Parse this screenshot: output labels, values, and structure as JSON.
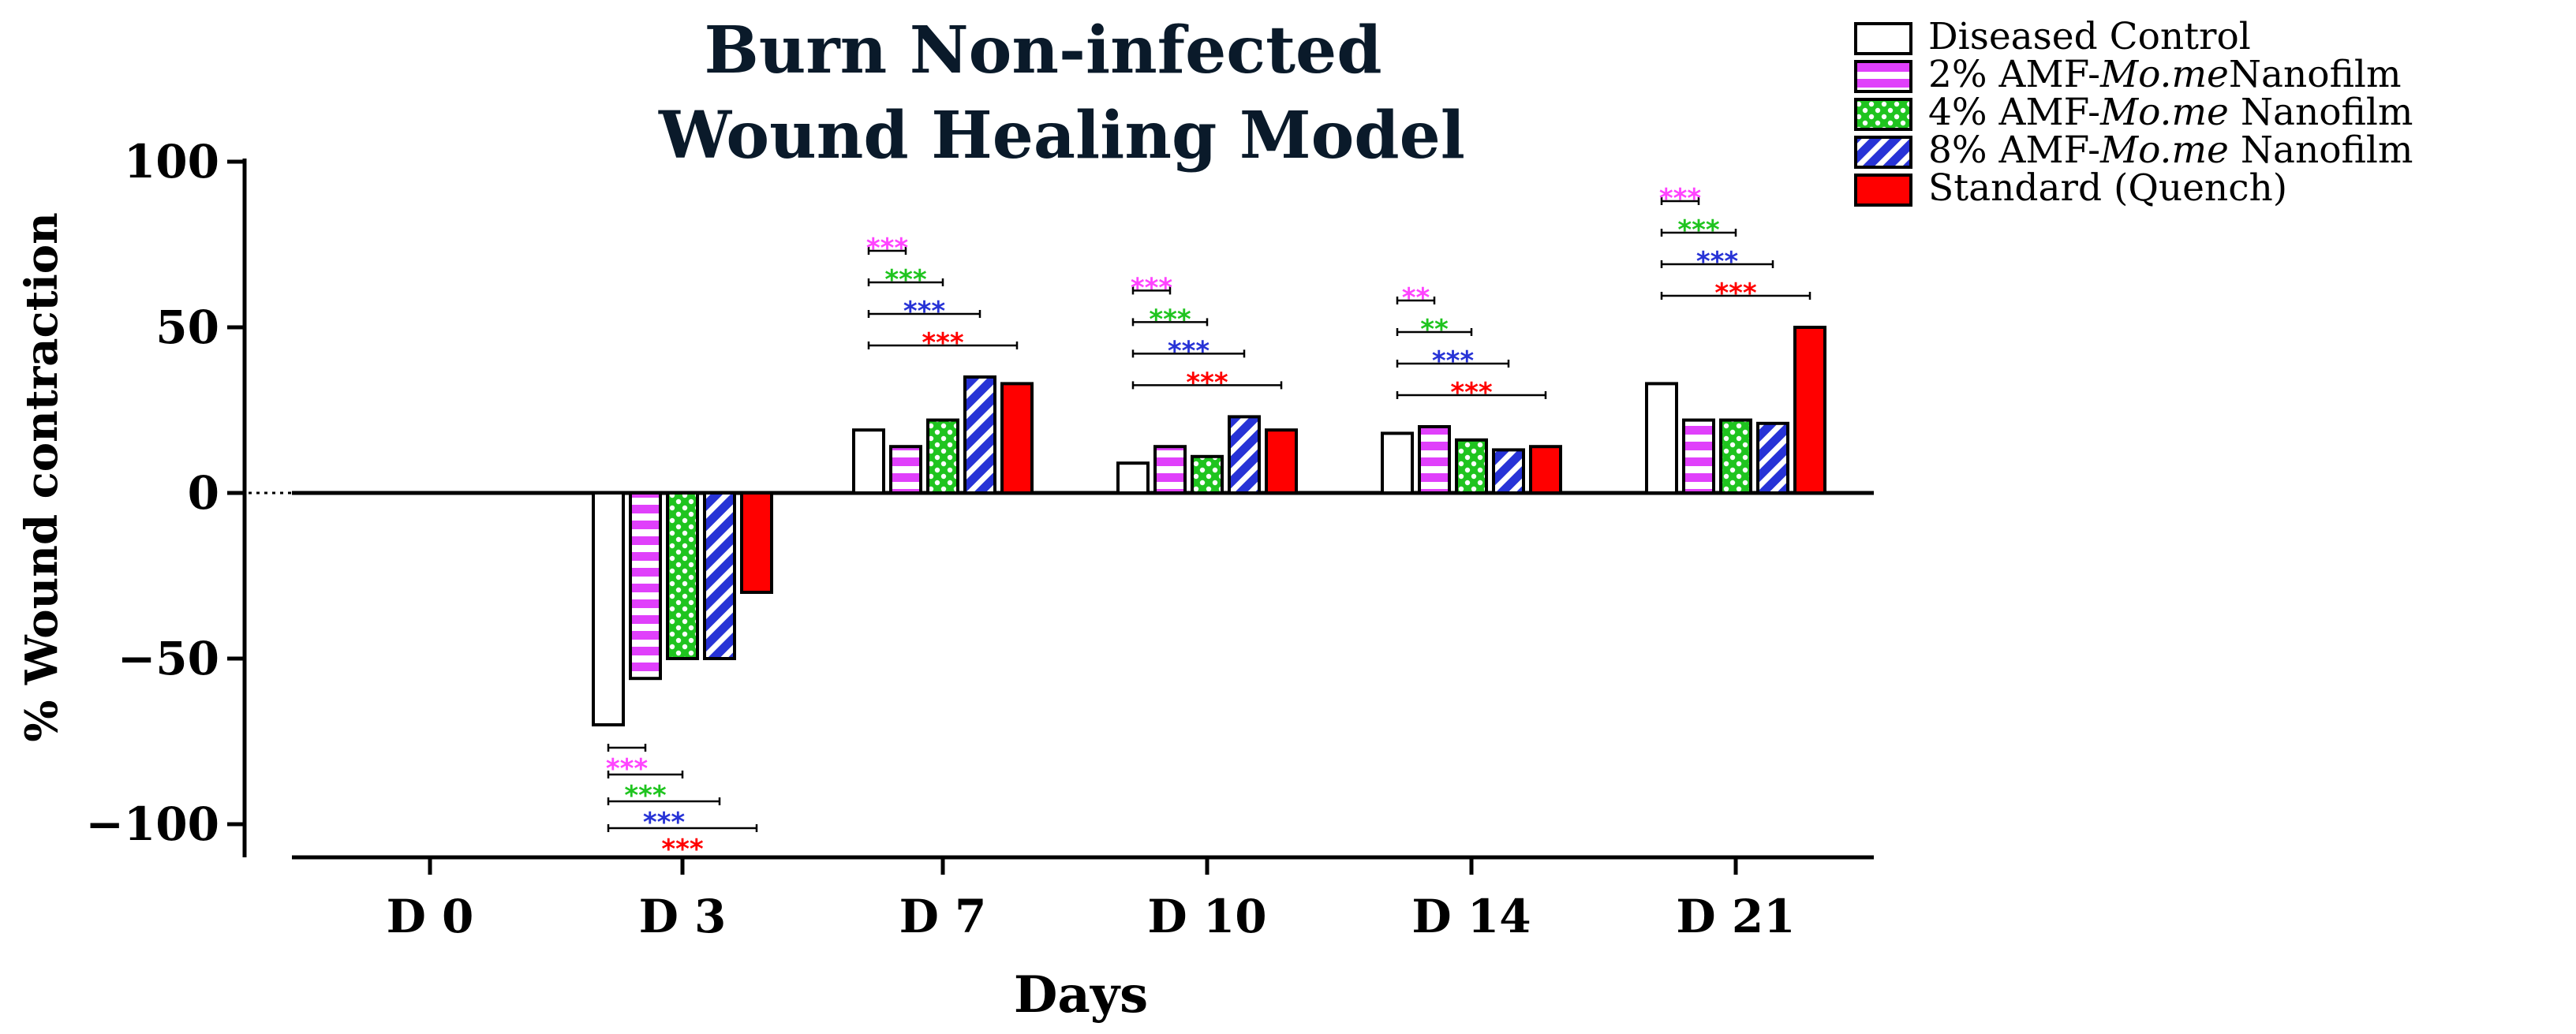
{
  "chart_data": {
    "type": "bar",
    "title": [
      "Burn Non-infected",
      "Wound Healing Model"
    ],
    "xlabel": "Days",
    "ylabel": "% Wound contraction",
    "ylim": [
      -110,
      100
    ],
    "yticks": [
      100,
      50,
      0,
      -50,
      -100
    ],
    "ytick_labels": [
      "100",
      "50",
      "0",
      "−50",
      "−100"
    ],
    "categories": [
      "D 0",
      "D 3",
      "D 7",
      "D 10",
      "D 14",
      "D 21"
    ],
    "legend_position": "top-right",
    "series": [
      {
        "name": "Diseased Control",
        "values": [
          0,
          -70,
          19,
          9,
          18,
          33
        ],
        "color": "#ffffff",
        "pattern": "none"
      },
      {
        "name": "2% AMF-Mo.me Nanofilm",
        "name_parts": [
          "2% AMF-",
          "Mo.me",
          "Nanofilm"
        ],
        "values": [
          0,
          -56,
          14,
          14,
          20,
          22
        ],
        "color": "#e040fb",
        "pattern": "horizontal-stripes"
      },
      {
        "name": "4% AMF-Mo.me Nanofilm",
        "name_parts": [
          "4% AMF-",
          "Mo.me",
          " Nanofilm"
        ],
        "values": [
          0,
          -50,
          22,
          11,
          16,
          22
        ],
        "color": "#1fc41f",
        "pattern": "dots"
      },
      {
        "name": "8% AMF-Mo.me Nanofilm",
        "name_parts": [
          "8% AMF-",
          "Mo.me",
          " Nanofilm"
        ],
        "values": [
          0,
          -50,
          35,
          23,
          13,
          21
        ],
        "color": "#2733d6",
        "pattern": "diagonal-stripes"
      },
      {
        "name": "Standard (Quench)",
        "values": [
          0,
          -30,
          33,
          19,
          14,
          50
        ],
        "color": "#ff0000",
        "pattern": "solid"
      }
    ],
    "significance": [
      {
        "category": "D 3",
        "marks": [
          {
            "label": "***",
            "series": 1,
            "color": "#ff44ff"
          },
          {
            "label": "***",
            "series": 2,
            "color": "#1fc41f"
          },
          {
            "label": "***",
            "series": 3,
            "color": "#2733d6"
          },
          {
            "label": "***",
            "series": 4,
            "color": "#ff0000"
          }
        ]
      },
      {
        "category": "D 7",
        "marks": [
          {
            "label": "***",
            "series": 1,
            "color": "#ff44ff"
          },
          {
            "label": "***",
            "series": 2,
            "color": "#1fc41f"
          },
          {
            "label": "***",
            "series": 3,
            "color": "#2733d6"
          },
          {
            "label": "***",
            "series": 4,
            "color": "#ff0000"
          }
        ]
      },
      {
        "category": "D 10",
        "marks": [
          {
            "label": "***",
            "series": 1,
            "color": "#ff44ff"
          },
          {
            "label": "***",
            "series": 2,
            "color": "#1fc41f"
          },
          {
            "label": "***",
            "series": 3,
            "color": "#2733d6"
          },
          {
            "label": "***",
            "series": 4,
            "color": "#ff0000"
          }
        ]
      },
      {
        "category": "D 14",
        "marks": [
          {
            "label": "**",
            "series": 1,
            "color": "#ff44ff"
          },
          {
            "label": "**",
            "series": 2,
            "color": "#1fc41f"
          },
          {
            "label": "***",
            "series": 3,
            "color": "#2733d6"
          },
          {
            "label": "***",
            "series": 4,
            "color": "#ff0000"
          }
        ]
      },
      {
        "category": "D 21",
        "marks": [
          {
            "label": "***",
            "series": 1,
            "color": "#ff44ff"
          },
          {
            "label": "***",
            "series": 2,
            "color": "#1fc41f"
          },
          {
            "label": "***",
            "series": 3,
            "color": "#2733d6"
          },
          {
            "label": "***",
            "series": 4,
            "color": "#ff0000"
          }
        ]
      }
    ]
  }
}
